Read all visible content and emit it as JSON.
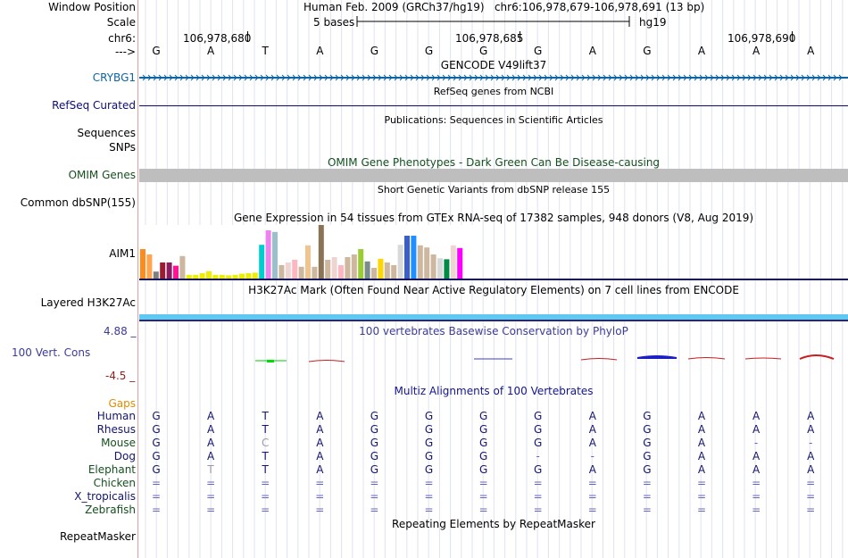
{
  "header": {
    "window_position_label": "Window Position",
    "window_position_value": "Human Feb. 2009 (GRCh37/hg19)   chr6:106,978,679-106,978,691 (13 bp)",
    "scale_label": "Scale",
    "scale_text": "5 bases",
    "assembly": "hg19",
    "chrom_label": "chr6:",
    "strand_label": "--->",
    "positions": [
      "106,978,680",
      "106,978,685",
      "106,978,690"
    ]
  },
  "sequence": [
    "G",
    "A",
    "T",
    "A",
    "G",
    "G",
    "G",
    "G",
    "A",
    "G",
    "A",
    "A",
    "A"
  ],
  "tracks": {
    "gencode": {
      "title": "GENCODE V49lift37",
      "gene": "CRYBG1"
    },
    "refseq": {
      "label": "RefSeq Curated",
      "title": "RefSeq genes from NCBI"
    },
    "publications": {
      "title": "Publications: Sequences in Scientific Articles",
      "label_line1": "Sequences",
      "label_line2": "SNPs"
    },
    "omim": {
      "title": "OMIM Gene Phenotypes - Dark Green Can Be Disease-causing",
      "label": "OMIM Genes"
    },
    "dbsnp": {
      "title": "Short Genetic Variants from dbSNP release 155",
      "label": "Common dbSNP(155)"
    },
    "gtex": {
      "title": "Gene Expression in 54 tissues from GTEx RNA-seq of 17382 samples, 948 donors (V8, Aug 2019)",
      "gene": "AIM1"
    },
    "h3k27ac": {
      "title": "H3K27Ac Mark (Often Found Near Active Regulatory Elements) on 7 cell lines from ENCODE",
      "label": "Layered H3K27Ac"
    },
    "phylop": {
      "title": "100 vertebrates Basewise Conservation by PhyloP",
      "label": "100 Vert. Cons",
      "max": "4.88 _",
      "min": "-4.5 _"
    },
    "multiz": {
      "title": "Multiz Alignments of 100 Vertebrates",
      "gaps_label": "Gaps"
    },
    "repeatmasker": {
      "title": "Repeating Elements by RepeatMasker",
      "label": "RepeatMasker"
    }
  },
  "species": [
    {
      "name": "Human",
      "bases": [
        "G",
        "A",
        "T",
        "A",
        "G",
        "G",
        "G",
        "G",
        "A",
        "G",
        "A",
        "A",
        "A"
      ]
    },
    {
      "name": "Rhesus",
      "bases": [
        "G",
        "A",
        "T",
        "A",
        "G",
        "G",
        "G",
        "G",
        "A",
        "G",
        "A",
        "A",
        "A"
      ]
    },
    {
      "name": "Mouse",
      "bases": [
        "G",
        "A",
        "C",
        "A",
        "G",
        "G",
        "G",
        "G",
        "A",
        "G",
        "A",
        "-",
        "-"
      ]
    },
    {
      "name": "Dog",
      "bases": [
        "G",
        "A",
        "T",
        "A",
        "G",
        "G",
        "G",
        "-",
        "-",
        "G",
        "A",
        "A",
        "A"
      ]
    },
    {
      "name": "Elephant",
      "bases": [
        "G",
        "T",
        "T",
        "A",
        "G",
        "G",
        "G",
        "G",
        "A",
        "G",
        "A",
        "A",
        "A"
      ]
    },
    {
      "name": "Chicken",
      "bases": [
        "=",
        "=",
        "=",
        "=",
        "=",
        "=",
        "=",
        "=",
        "=",
        "=",
        "=",
        "=",
        "="
      ]
    },
    {
      "name": "X_tropicalis",
      "bases": [
        "=",
        "=",
        "=",
        "=",
        "=",
        "=",
        "=",
        "=",
        "=",
        "=",
        "=",
        "=",
        "="
      ]
    },
    {
      "name": "Zebrafish",
      "bases": [
        "=",
        "=",
        "=",
        "=",
        "=",
        "=",
        "=",
        "=",
        "=",
        "=",
        "=",
        "=",
        "="
      ]
    }
  ],
  "gtex_bars": [
    {
      "v": 0.55,
      "c": "#ff8c1a"
    },
    {
      "v": 0.45,
      "c": "#ffa54f"
    },
    {
      "v": 0.13,
      "c": "#7f7f7f"
    },
    {
      "v": 0.3,
      "c": "#9b1b30"
    },
    {
      "v": 0.3,
      "c": "#8b1c62"
    },
    {
      "v": 0.24,
      "c": "#ff1493"
    },
    {
      "v": 0.42,
      "c": "#cdb79e"
    },
    {
      "v": 0.07,
      "c": "#eeee00"
    },
    {
      "v": 0.07,
      "c": "#eeee00"
    },
    {
      "v": 0.1,
      "c": "#eeee00"
    },
    {
      "v": 0.14,
      "c": "#eeee00"
    },
    {
      "v": 0.07,
      "c": "#eeee00"
    },
    {
      "v": 0.07,
      "c": "#eeee00"
    },
    {
      "v": 0.06,
      "c": "#eeee00"
    },
    {
      "v": 0.07,
      "c": "#eeee00"
    },
    {
      "v": 0.09,
      "c": "#eeee00"
    },
    {
      "v": 0.1,
      "c": "#eeee00"
    },
    {
      "v": 0.11,
      "c": "#eeee00"
    },
    {
      "v": 0.63,
      "c": "#00cdcd"
    },
    {
      "v": 0.9,
      "c": "#ee82ee"
    },
    {
      "v": 0.87,
      "c": "#9ac0cd"
    },
    {
      "v": 0.25,
      "c": "#cdb79e"
    },
    {
      "v": 0.3,
      "c": "#eed5d2"
    },
    {
      "v": 0.35,
      "c": "#ffb6c1"
    },
    {
      "v": 0.22,
      "c": "#cdb79e"
    },
    {
      "v": 0.62,
      "c": "#eec591"
    },
    {
      "v": 0.22,
      "c": "#cdb79e"
    },
    {
      "v": 1.0,
      "c": "#8b7355"
    },
    {
      "v": 0.35,
      "c": "#cdb79e"
    },
    {
      "v": 0.4,
      "c": "#eed5d2"
    },
    {
      "v": 0.25,
      "c": "#ffb6c1"
    },
    {
      "v": 0.4,
      "c": "#cdb79e"
    },
    {
      "v": 0.45,
      "c": "#cdb79e"
    },
    {
      "v": 0.55,
      "c": "#9acd32"
    },
    {
      "v": 0.32,
      "c": "#7a8b8b"
    },
    {
      "v": 0.2,
      "c": "#cdb79e"
    },
    {
      "v": 0.37,
      "c": "#ffd700"
    },
    {
      "v": 0.3,
      "c": "#cdb79e"
    },
    {
      "v": 0.25,
      "c": "#cdb79e"
    },
    {
      "v": 0.63,
      "c": "#d9d9d9"
    },
    {
      "v": 0.8,
      "c": "#3a5fcd"
    },
    {
      "v": 0.8,
      "c": "#1e90ff"
    },
    {
      "v": 0.62,
      "c": "#cdb79e"
    },
    {
      "v": 0.58,
      "c": "#cdb79e"
    },
    {
      "v": 0.45,
      "c": "#cdb79e"
    },
    {
      "v": 0.38,
      "c": "#d9d9d9"
    },
    {
      "v": 0.36,
      "c": "#008b45"
    },
    {
      "v": 0.62,
      "c": "#eed5d2"
    },
    {
      "v": 0.57,
      "c": "#ff00ff"
    }
  ],
  "colors": {
    "gene_blue": "#0c64a0",
    "refseq_navy": "#0c0c78",
    "omim_green": "#14501e",
    "phylop_blue": "#3c3c96",
    "phylop_red": "#961e1e",
    "gaps_orange": "#e18c00",
    "h3k27ac_cyan": "#61c9f1"
  }
}
